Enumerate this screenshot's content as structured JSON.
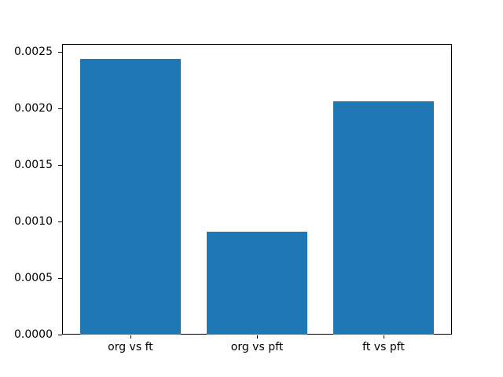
{
  "figure": {
    "background_color": "#ffffff",
    "bar_color": "#1f77b4",
    "axis_color": "#000000",
    "text_color": "#000000"
  },
  "chart_data": {
    "type": "bar",
    "title": "",
    "xlabel": "",
    "ylabel": "",
    "categories": [
      "org vs ft",
      "org vs pft",
      "ft vs pft"
    ],
    "values": [
      0.00244,
      0.00091,
      0.00206
    ],
    "ylim": [
      0,
      0.00257
    ],
    "xlim": [
      -0.54,
      2.54
    ],
    "yticks": [
      0.0,
      0.0005,
      0.001,
      0.0015,
      0.002,
      0.0025
    ],
    "ytick_labels": [
      "0.0000",
      "0.0005",
      "0.0010",
      "0.0015",
      "0.0020",
      "0.0025"
    ],
    "bar_width_fraction": 0.8,
    "grid": false,
    "legend": null
  },
  "layout_note": "single axes, box spines on all four sides, ticks pointing outward"
}
